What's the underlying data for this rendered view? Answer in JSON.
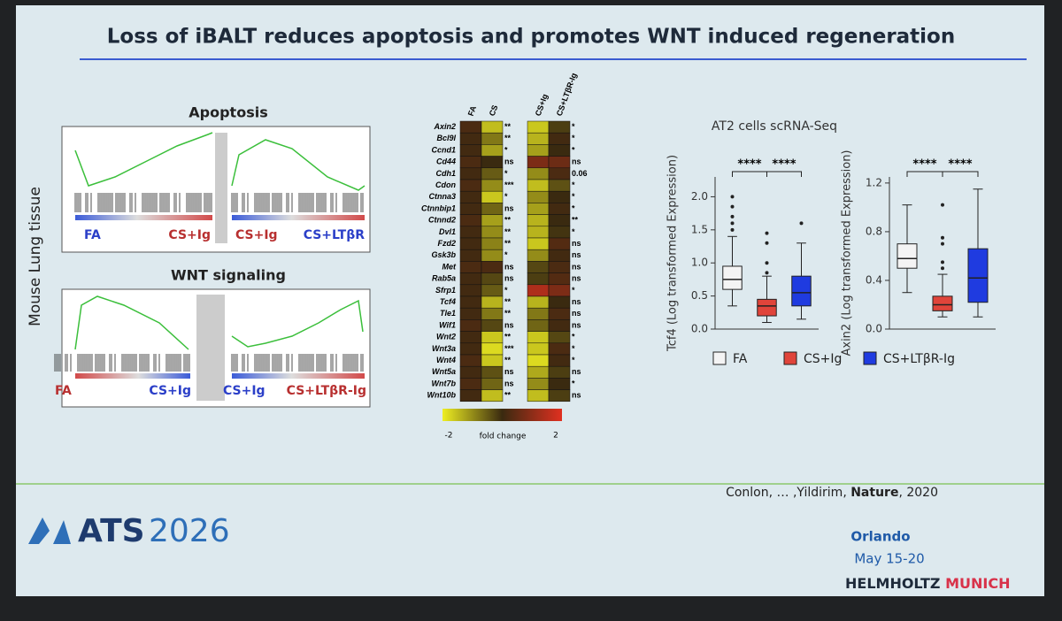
{
  "header": {
    "title": "Loss of iBALT reduces apoptosis and promotes WNT induced regeneration"
  },
  "side_label": "Mouse Lung tissue",
  "gsea": [
    {
      "title": "Apoptosis",
      "labels": [
        "FA",
        "CS+Ig",
        "CS+Ig",
        "CS+LTβR"
      ]
    },
    {
      "title": "WNT signaling",
      "labels": [
        "FA",
        "CS+Ig",
        "CS+Ig",
        "CS+LTβR-Ig"
      ]
    }
  ],
  "heatmap": {
    "columns": [
      "FA",
      "CS",
      "CS+Ig",
      "CS+LTβR-Ig"
    ],
    "genes": [
      "Axin2",
      "Bcl9l",
      "Ccnd1",
      "Cd44",
      "Cdh1",
      "Cdon",
      "Ctnna3",
      "Ctnnbip1",
      "Ctnnd2",
      "Dvl1",
      "Fzd2",
      "Gsk3b",
      "Met",
      "Rab5a",
      "Sfrp1",
      "Tcf4",
      "Tle1",
      "Wif1",
      "Wnt2",
      "Wnt3a",
      "Wnt4",
      "Wnt5a",
      "Wnt7b",
      "Wnt10b"
    ],
    "values": [
      [
        0.2,
        0.1,
        0.1,
        0.2,
        0.1,
        0.2,
        0.1,
        0.1,
        0.2,
        0.1,
        0.1,
        0.1,
        0.2,
        0.1,
        0.1,
        0.1,
        0.1,
        0.2,
        0.1,
        0.1,
        0.2,
        0.1,
        0.2,
        0.1
      ],
      [
        -1.5,
        -0.8,
        -1.2,
        0,
        -0.5,
        -1,
        -1.6,
        -0.6,
        -1.2,
        -1,
        -0.9,
        -1,
        0.2,
        -0.3,
        -0.5,
        -1.4,
        -0.8,
        -0.3,
        -1.6,
        -1.8,
        -1.6,
        -0.4,
        -0.6,
        -1.5
      ],
      [
        -1.6,
        -1.4,
        -1.2,
        0.8,
        -1,
        -1.5,
        -1,
        -1.2,
        -1.4,
        -1.4,
        -1.6,
        -1,
        -0.3,
        -0.2,
        1.4,
        -1.4,
        -0.8,
        -0.6,
        -1.6,
        -1.6,
        -1.8,
        -1.3,
        -1,
        -1.5
      ],
      [
        -0.2,
        0.1,
        0,
        0.6,
        0.2,
        -0.4,
        0,
        0.1,
        0,
        -0.1,
        0.3,
        0.1,
        0.2,
        0.3,
        0.8,
        0,
        0.2,
        0.1,
        -0.3,
        0.2,
        0.1,
        -0.2,
        0,
        -0.2
      ]
    ],
    "sig_left": [
      "**",
      "**",
      "*",
      "ns",
      "*",
      "***",
      "*",
      "ns",
      "**",
      "**",
      "**",
      "*",
      "ns",
      "ns",
      "*",
      "**",
      "**",
      "ns",
      "**",
      "***",
      "**",
      "ns",
      "ns",
      "**"
    ],
    "sig_right": [
      "*",
      "*",
      "*",
      "ns",
      "0.06",
      "*",
      "*",
      "*",
      "**",
      "*",
      "ns",
      "ns",
      "ns",
      "ns",
      "*",
      "ns",
      "ns",
      "ns",
      "*",
      "*",
      "*",
      "ns",
      "*",
      "ns"
    ],
    "scale": {
      "min": -2,
      "max": 2,
      "label": "fold change"
    }
  },
  "boxplots_title": "AT2 cells scRNA-Seq",
  "chart_data": [
    {
      "type": "box",
      "y_label": "Tcf4 (Log transformed Expression)",
      "ylim": [
        0,
        2.3
      ],
      "yticks": [
        {
          "value": 0,
          "label": "0.0"
        },
        {
          "value": 0.5,
          "label": "0.5"
        },
        {
          "value": 1,
          "label": "1.0"
        },
        {
          "value": 1.5,
          "label": "1.5"
        },
        {
          "value": 2,
          "label": "2.0"
        }
      ],
      "boxes": [
        {
          "name": "FA",
          "color": "#f4f4f4",
          "whisker_low": 0.35,
          "q1": 0.6,
          "median": 0.75,
          "q3": 0.95,
          "whisker_high": 1.4,
          "outliers": [
            1.5,
            1.6,
            1.7,
            1.85,
            2.0
          ]
        },
        {
          "name": "CS+Ig",
          "color": "#e0443a",
          "whisker_low": 0.1,
          "q1": 0.2,
          "median": 0.35,
          "q3": 0.45,
          "whisker_high": 0.8,
          "outliers": [
            0.85,
            1.0,
            1.3,
            1.45
          ]
        },
        {
          "name": "CS+LTβR-Ig",
          "color": "#1f3be0",
          "whisker_low": 0.15,
          "q1": 0.35,
          "median": 0.55,
          "q3": 0.8,
          "whisker_high": 1.3,
          "outliers": [
            1.6
          ]
        }
      ],
      "annotations": [
        "****",
        "****"
      ]
    },
    {
      "type": "box",
      "y_label": "Axin2 (Log transformed Expression)",
      "ylim": [
        0,
        1.25
      ],
      "yticks": [
        {
          "value": 0,
          "label": "0.0"
        },
        0.4,
        0.8,
        1.2
      ],
      "boxes": [
        {
          "name": "FA",
          "color": "#f4f4f4",
          "whisker_low": 0.3,
          "q1": 0.5,
          "median": 0.58,
          "q3": 0.7,
          "whisker_high": 1.02,
          "outliers": []
        },
        {
          "name": "CS+Ig",
          "color": "#e0443a",
          "whisker_low": 0.1,
          "q1": 0.15,
          "median": 0.2,
          "q3": 0.27,
          "whisker_high": 0.45,
          "outliers": [
            0.5,
            0.55,
            0.7,
            0.75,
            1.02
          ]
        },
        {
          "name": "CS+LTβR-Ig",
          "color": "#1f3be0",
          "whisker_low": 0.1,
          "q1": 0.22,
          "median": 0.42,
          "q3": 0.66,
          "whisker_high": 1.15,
          "outliers": []
        }
      ],
      "annotations": [
        "****",
        "****"
      ]
    }
  ],
  "citation": {
    "authors": "Conlon, … ,Yildirim,",
    "journal": "Nature",
    "year": "2020"
  },
  "footer": {
    "logo": "ATS",
    "logo_year": "2026",
    "city": "Orlando",
    "dates": "May 15-20",
    "org": "HELMHOLTZ",
    "org2": "MUNICH"
  }
}
